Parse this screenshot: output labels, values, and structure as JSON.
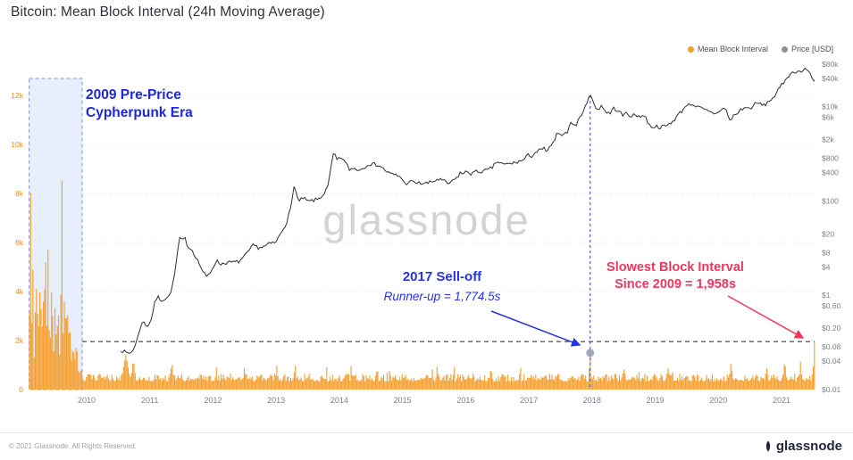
{
  "title": "Bitcoin: Mean Block Interval (24h Moving Average)",
  "watermark": "glassnode",
  "legend": {
    "items": [
      {
        "label": "Mean Block Interval",
        "color": "#f59e2b"
      },
      {
        "label": "Price [USD]",
        "color": "#8b90a0"
      }
    ]
  },
  "annotations": {
    "pre_price": {
      "text_line1": "2009 Pre-Price",
      "text_line2": "Cypherpunk Era",
      "color": "#1b27e0"
    },
    "sell_off": {
      "text_line1": "2017 Sell-off",
      "text_line2": "Runner-up = 1,774.5s",
      "color": "#2533e6",
      "value_s": 1774.5
    },
    "slowest": {
      "text_line1": "Slowest Block Interval",
      "text_line2": "Since 2009 = 1,958s",
      "color": "#f0375f",
      "value_s": 1958
    }
  },
  "footer": {
    "copyright": "© 2021 Glassnode. All Rights Reserved.",
    "brand": "glassnode"
  },
  "chart_data": {
    "type": "combo",
    "title": "Bitcoin: Mean Block Interval (24h Moving Average)",
    "x_axis": {
      "range": [
        2009.09,
        2021.53
      ],
      "ticks": [
        2010,
        2011,
        2012,
        2013,
        2014,
        2015,
        2016,
        2017,
        2018,
        2019,
        2020,
        2021
      ]
    },
    "y_left": {
      "label": "Mean Block Interval (s)",
      "scale": "linear",
      "range": [
        0,
        13350
      ],
      "color": "#dd8f2d",
      "ticks": [
        [
          "12k",
          12000
        ],
        [
          "10k",
          10000
        ],
        [
          "8k",
          8000
        ],
        [
          "6k",
          6000
        ],
        [
          "4k",
          4000
        ],
        [
          "2k",
          2000
        ],
        [
          "0",
          0
        ]
      ]
    },
    "y_right": {
      "label": "Price [USD]",
      "scale": "log",
      "range": [
        0.01,
        87000
      ],
      "color": "#7b8192",
      "ticks": [
        [
          "$80k",
          80000
        ],
        [
          "$40k",
          40000
        ],
        [
          "$10k",
          10000
        ],
        [
          "$6k",
          6000
        ],
        [
          "$2k",
          2000
        ],
        [
          "$800",
          800
        ],
        [
          "$400",
          400
        ],
        [
          "$100",
          100
        ],
        [
          "$20",
          20
        ],
        [
          "$8",
          8
        ],
        [
          "$4",
          4
        ],
        [
          "$1",
          1
        ],
        [
          "$0.60",
          0.6
        ],
        [
          "$0.20",
          0.2
        ],
        [
          "$0.08",
          0.08
        ],
        [
          "$0.04",
          0.04
        ],
        [
          "$0.01",
          0.01
        ]
      ]
    },
    "highlight_region": {
      "x_start": 2009.09,
      "x_end": 2009.93,
      "fill": "#cfe0fb",
      "border": "#7a97ef"
    },
    "reference_lines": {
      "horizontal_dashed": {
        "axis": "left",
        "value": 1958,
        "color": "#3f3f46"
      },
      "vertical_dashed": {
        "x": 2017.97,
        "color": "#5563e8"
      }
    },
    "markers": [
      {
        "x": 2017.97,
        "y_value": 1500,
        "color": "#9aa0b2"
      }
    ],
    "series": [
      {
        "name": "Mean Block Interval",
        "type": "bar",
        "axis": "left",
        "color": "#f59e2b",
        "seed": 42,
        "envelope_2009": [
          [
            2009.09,
            900
          ],
          [
            2009.11,
            12400
          ],
          [
            2009.13,
            2600
          ],
          [
            2009.15,
            5800
          ],
          [
            2009.17,
            1800
          ],
          [
            2009.19,
            4400
          ],
          [
            2009.21,
            6600
          ],
          [
            2009.23,
            2400
          ],
          [
            2009.25,
            3000
          ],
          [
            2009.27,
            7200
          ],
          [
            2009.29,
            2200
          ],
          [
            2009.31,
            3600
          ],
          [
            2009.33,
            5200
          ],
          [
            2009.35,
            8800
          ],
          [
            2009.37,
            3200
          ],
          [
            2009.39,
            6800
          ],
          [
            2009.41,
            2400
          ],
          [
            2009.43,
            4200
          ],
          [
            2009.45,
            5600
          ],
          [
            2009.47,
            1900
          ],
          [
            2009.49,
            3400
          ],
          [
            2009.51,
            4800
          ],
          [
            2009.53,
            2800
          ],
          [
            2009.55,
            6200
          ],
          [
            2009.57,
            2000
          ],
          [
            2009.59,
            3800
          ],
          [
            2009.61,
            10900
          ],
          [
            2009.63,
            3400
          ],
          [
            2009.65,
            6200
          ],
          [
            2009.67,
            2100
          ],
          [
            2009.69,
            4600
          ],
          [
            2009.71,
            2400
          ],
          [
            2009.73,
            4200
          ],
          [
            2009.75,
            1600
          ],
          [
            2009.77,
            3100
          ],
          [
            2009.79,
            2000
          ],
          [
            2009.81,
            1400
          ],
          [
            2009.83,
            2600
          ],
          [
            2009.85,
            1800
          ],
          [
            2009.87,
            1100
          ],
          [
            2009.9,
            900
          ],
          [
            2009.93,
            800
          ]
        ],
        "post_2010": {
          "base": 340,
          "noise": 310,
          "spike_prob": 0.045,
          "spike_extra": 650,
          "spikes": [
            [
              2010.62,
              1450,
              0.1
            ],
            [
              2010.74,
              1250,
              0.06
            ],
            [
              2011.35,
              1150,
              0.05
            ],
            [
              2012.5,
              980,
              0.04
            ],
            [
              2013.3,
              1080,
              0.04
            ],
            [
              2014.6,
              960,
              0.04
            ],
            [
              2015.55,
              1020,
              0.04
            ],
            [
              2016.4,
              960,
              0.04
            ],
            [
              2017.97,
              1774.5,
              0.03
            ],
            [
              2018.5,
              950,
              0.04
            ],
            [
              2019.2,
              980,
              0.04
            ],
            [
              2020.2,
              1120,
              0.05
            ],
            [
              2021.05,
              1200,
              0.05
            ],
            [
              2021.3,
              1150,
              0.04
            ],
            [
              2021.52,
              1958,
              0.035
            ]
          ]
        }
      },
      {
        "name": "Price [USD]",
        "type": "line",
        "axis": "right",
        "color": "#2f2f33",
        "jitter": 0.08,
        "seed": 7,
        "points": [
          [
            2010.54,
            0.07
          ],
          [
            2010.62,
            0.06
          ],
          [
            2010.7,
            0.06
          ],
          [
            2010.78,
            0.09
          ],
          [
            2010.84,
            0.2
          ],
          [
            2010.9,
            0.28
          ],
          [
            2010.96,
            0.22
          ],
          [
            2011.02,
            0.3
          ],
          [
            2011.08,
            0.7
          ],
          [
            2011.12,
            0.95
          ],
          [
            2011.18,
            0.78
          ],
          [
            2011.24,
            0.85
          ],
          [
            2011.3,
            0.92
          ],
          [
            2011.36,
            1.6
          ],
          [
            2011.4,
            3.2
          ],
          [
            2011.44,
            8.5
          ],
          [
            2011.48,
            17.5
          ],
          [
            2011.52,
            14
          ],
          [
            2011.56,
            16
          ],
          [
            2011.6,
            11
          ],
          [
            2011.68,
            8.8
          ],
          [
            2011.76,
            5.4
          ],
          [
            2011.84,
            3.2
          ],
          [
            2011.9,
            2.4
          ],
          [
            2011.96,
            3.1
          ],
          [
            2012.05,
            5.4
          ],
          [
            2012.12,
            4.6
          ],
          [
            2012.2,
            4.9
          ],
          [
            2012.3,
            5.0
          ],
          [
            2012.4,
            5.1
          ],
          [
            2012.5,
            6.6
          ],
          [
            2012.58,
            9.1
          ],
          [
            2012.64,
            11.6
          ],
          [
            2012.72,
            10.3
          ],
          [
            2012.8,
            10.6
          ],
          [
            2012.9,
            12.4
          ],
          [
            2013.0,
            13.4
          ],
          [
            2013.08,
            22
          ],
          [
            2013.16,
            34
          ],
          [
            2013.24,
            75
          ],
          [
            2013.28,
            230
          ],
          [
            2013.32,
            140
          ],
          [
            2013.36,
            93
          ],
          [
            2013.42,
            118
          ],
          [
            2013.5,
            97
          ],
          [
            2013.58,
            102
          ],
          [
            2013.66,
            108
          ],
          [
            2013.74,
            133
          ],
          [
            2013.82,
            200
          ],
          [
            2013.88,
            650
          ],
          [
            2013.92,
            1120
          ],
          [
            2013.96,
            720
          ],
          [
            2014.0,
            790
          ],
          [
            2014.04,
            850
          ],
          [
            2014.1,
            630
          ],
          [
            2014.16,
            470
          ],
          [
            2014.24,
            495
          ],
          [
            2014.32,
            450
          ],
          [
            2014.4,
            530
          ],
          [
            2014.46,
            620
          ],
          [
            2014.54,
            595
          ],
          [
            2014.62,
            585
          ],
          [
            2014.7,
            480
          ],
          [
            2014.8,
            378
          ],
          [
            2014.9,
            352
          ],
          [
            2014.98,
            318
          ],
          [
            2015.04,
            225
          ],
          [
            2015.1,
            258
          ],
          [
            2015.2,
            244
          ],
          [
            2015.3,
            236
          ],
          [
            2015.4,
            238
          ],
          [
            2015.5,
            262
          ],
          [
            2015.56,
            292
          ],
          [
            2015.64,
            270
          ],
          [
            2015.72,
            232
          ],
          [
            2015.8,
            264
          ],
          [
            2015.88,
            334
          ],
          [
            2015.92,
            415
          ],
          [
            2015.96,
            362
          ],
          [
            2016.02,
            434
          ],
          [
            2016.08,
            378
          ],
          [
            2016.16,
            416
          ],
          [
            2016.26,
            424
          ],
          [
            2016.36,
            454
          ],
          [
            2016.44,
            537
          ],
          [
            2016.48,
            672
          ],
          [
            2016.54,
            655
          ],
          [
            2016.6,
            585
          ],
          [
            2016.68,
            612
          ],
          [
            2016.76,
            640
          ],
          [
            2016.84,
            686
          ],
          [
            2016.92,
            742
          ],
          [
            2017.0,
            968
          ],
          [
            2017.04,
            892
          ],
          [
            2017.1,
            1060
          ],
          [
            2017.18,
            1190
          ],
          [
            2017.24,
            1290
          ],
          [
            2017.28,
            1130
          ],
          [
            2017.34,
            1370
          ],
          [
            2017.4,
            1830
          ],
          [
            2017.44,
            2530
          ],
          [
            2017.5,
            2430
          ],
          [
            2017.54,
            2860
          ],
          [
            2017.6,
            2660
          ],
          [
            2017.64,
            4260
          ],
          [
            2017.7,
            4400
          ],
          [
            2017.74,
            3860
          ],
          [
            2017.8,
            5660
          ],
          [
            2017.84,
            7260
          ],
          [
            2017.9,
            9860
          ],
          [
            2017.94,
            16560
          ],
          [
            2017.97,
            19060
          ],
          [
            2018.0,
            14130
          ],
          [
            2018.04,
            10260
          ],
          [
            2018.1,
            8530
          ],
          [
            2018.14,
            11060
          ],
          [
            2018.2,
            8260
          ],
          [
            2018.28,
            7030
          ],
          [
            2018.34,
            9260
          ],
          [
            2018.4,
            8430
          ],
          [
            2018.5,
            6360
          ],
          [
            2018.54,
            7460
          ],
          [
            2018.6,
            6530
          ],
          [
            2018.7,
            6430
          ],
          [
            2018.78,
            6460
          ],
          [
            2018.84,
            6360
          ],
          [
            2018.9,
            4130
          ],
          [
            2018.96,
            3730
          ],
          [
            2019.02,
            3830
          ],
          [
            2019.1,
            3660
          ],
          [
            2019.2,
            4030
          ],
          [
            2019.3,
            5260
          ],
          [
            2019.38,
            7160
          ],
          [
            2019.44,
            8560
          ],
          [
            2019.5,
            11530
          ],
          [
            2019.54,
            10530
          ],
          [
            2019.58,
            11860
          ],
          [
            2019.64,
            10260
          ],
          [
            2019.7,
            9530
          ],
          [
            2019.8,
            8330
          ],
          [
            2019.9,
            7330
          ],
          [
            2019.98,
            7230
          ],
          [
            2020.06,
            9360
          ],
          [
            2020.12,
            8760
          ],
          [
            2020.18,
            4960
          ],
          [
            2020.24,
            6460
          ],
          [
            2020.3,
            7130
          ],
          [
            2020.36,
            8860
          ],
          [
            2020.42,
            9530
          ],
          [
            2020.5,
            9130
          ],
          [
            2020.58,
            11330
          ],
          [
            2020.66,
            11730
          ],
          [
            2020.72,
            10560
          ],
          [
            2020.8,
            12960
          ],
          [
            2020.86,
            15530
          ],
          [
            2020.92,
            18530
          ],
          [
            2020.98,
            26530
          ],
          [
            2021.04,
            33530
          ],
          [
            2021.1,
            46260
          ],
          [
            2021.14,
            48260
          ],
          [
            2021.2,
            55260
          ],
          [
            2021.26,
            57260
          ],
          [
            2021.3,
            54260
          ],
          [
            2021.34,
            58260
          ],
          [
            2021.4,
            62960
          ],
          [
            2021.44,
            53260
          ],
          [
            2021.48,
            42260
          ],
          [
            2021.52,
            36530
          ]
        ]
      }
    ]
  }
}
